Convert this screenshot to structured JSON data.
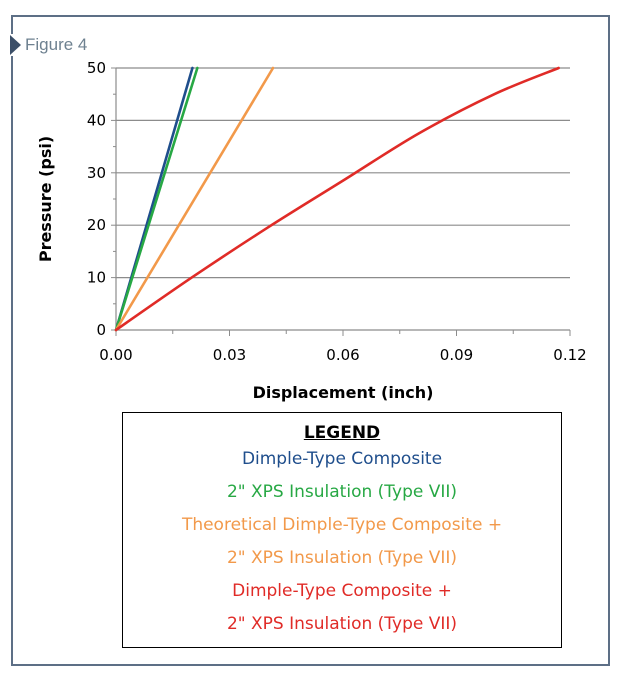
{
  "figure_label": "Figure 4",
  "chart_data": {
    "type": "line",
    "xlabel": "Displacement (inch)",
    "ylabel": "Pressure (psi)",
    "xlim": [
      0,
      0.12
    ],
    "ylim": [
      0,
      50
    ],
    "xticks": [
      "0.00",
      "0.03",
      "0.06",
      "0.09",
      "0.12"
    ],
    "yticks": [
      "0",
      "10",
      "20",
      "30",
      "40",
      "50"
    ],
    "grid": "horizontal",
    "series": [
      {
        "name": "Dimple-Type Composite",
        "color": "#1f4e8c",
        "x": [
          0,
          0.0202
        ],
        "y": [
          0,
          50
        ]
      },
      {
        "name": "2\" XPS Insulation (Type VII)",
        "color": "#27a844",
        "x": [
          0,
          0.0215
        ],
        "y": [
          0,
          50
        ]
      },
      {
        "name": "Theoretical Dimple-Type Composite + 2\" XPS Insulation (Type VII)",
        "color": "#f2994a",
        "x": [
          0,
          0.0415
        ],
        "y": [
          0,
          50
        ]
      },
      {
        "name": "Dimple-Type Composite + 2\" XPS Insulation (Type VII)",
        "color": "#e02b27",
        "x": [
          0,
          0.02,
          0.04,
          0.06,
          0.08,
          0.1,
          0.117
        ],
        "y": [
          0,
          10,
          19.5,
          28.5,
          37.5,
          45,
          50
        ]
      }
    ]
  },
  "legend": {
    "title": "LEGEND",
    "entries": [
      {
        "lines": [
          "Dimple-Type Composite"
        ],
        "color": "#1f4e8c"
      },
      {
        "lines": [
          "2\" XPS Insulation (Type VII)"
        ],
        "color": "#27a844"
      },
      {
        "lines": [
          "Theoretical Dimple-Type Composite +",
          "2\" XPS Insulation (Type VII)"
        ],
        "color": "#f2994a"
      },
      {
        "lines": [
          "Dimple-Type Composite +",
          "2\" XPS Insulation (Type VII)"
        ],
        "color": "#e02b27"
      }
    ]
  }
}
